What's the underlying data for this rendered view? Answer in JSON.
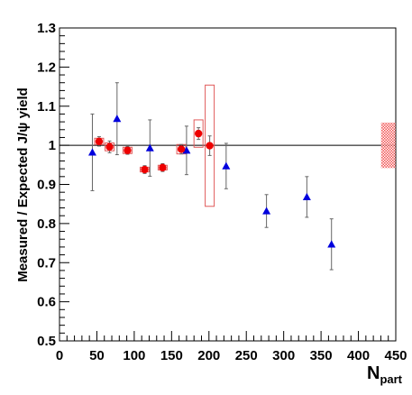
{
  "chart_data": {
    "type": "scatter",
    "ylabel": "Measured / Expected J/ψ yield",
    "xlabel": "N",
    "xlabel_sub": "part",
    "xlim": [
      0,
      450
    ],
    "ylim": [
      0.5,
      1.3
    ],
    "x_ticks": [
      0,
      50,
      100,
      150,
      200,
      250,
      300,
      350,
      400,
      450
    ],
    "y_ticks": [
      0.5,
      0.6,
      0.7,
      0.8,
      0.9,
      1.0,
      1.1,
      1.2,
      1.3
    ],
    "x_tick_labels": [
      "0",
      "50",
      "100",
      "150",
      "200",
      "250",
      "300",
      "350",
      "400",
      "450"
    ],
    "y_tick_labels": [
      "0.5",
      "0.6",
      "0.7",
      "0.8",
      "0.9",
      "1",
      "1.1",
      "1.2",
      "1.3"
    ],
    "reference_line": 1.0,
    "grid": false,
    "series": [
      {
        "marker": "triangle",
        "color": "#0000dd",
        "points": [
          {
            "x": 44,
            "y": 0.982,
            "err": 0.098
          },
          {
            "x": 77,
            "y": 1.068,
            "err": 0.092
          },
          {
            "x": 121,
            "y": 0.993,
            "err": 0.072
          },
          {
            "x": 170,
            "y": 0.987,
            "err": 0.062
          },
          {
            "x": 223,
            "y": 0.947,
            "err": 0.058
          },
          {
            "x": 277,
            "y": 0.832,
            "err": 0.042
          },
          {
            "x": 331,
            "y": 0.868,
            "err": 0.052
          },
          {
            "x": 364,
            "y": 0.747,
            "err": 0.065
          }
        ]
      },
      {
        "marker": "circle",
        "color": "#ee0000",
        "syst_color": "#e05a5a",
        "points": [
          {
            "x": 53,
            "y": 1.01,
            "err": 0.012,
            "syst": 0.008
          },
          {
            "x": 67,
            "y": 0.996,
            "err": 0.015,
            "syst": 0.01
          },
          {
            "x": 91,
            "y": 0.987,
            "err": 0.01,
            "syst": 0.008
          },
          {
            "x": 114,
            "y": 0.938,
            "err": 0.01,
            "syst": 0.006
          },
          {
            "x": 138,
            "y": 0.943,
            "err": 0.01,
            "syst": 0.006
          },
          {
            "x": 163,
            "y": 0.99,
            "err": 0.012,
            "syst": 0.012
          },
          {
            "x": 186,
            "y": 1.03,
            "err": 0.015,
            "syst": 0.035
          },
          {
            "x": 201,
            "y": 0.999,
            "err": 0.025,
            "syst": 0.155
          }
        ]
      }
    ],
    "global_syst": {
      "x": 440,
      "y": 1.0,
      "err": 0.058,
      "color": "#ee3333"
    }
  }
}
